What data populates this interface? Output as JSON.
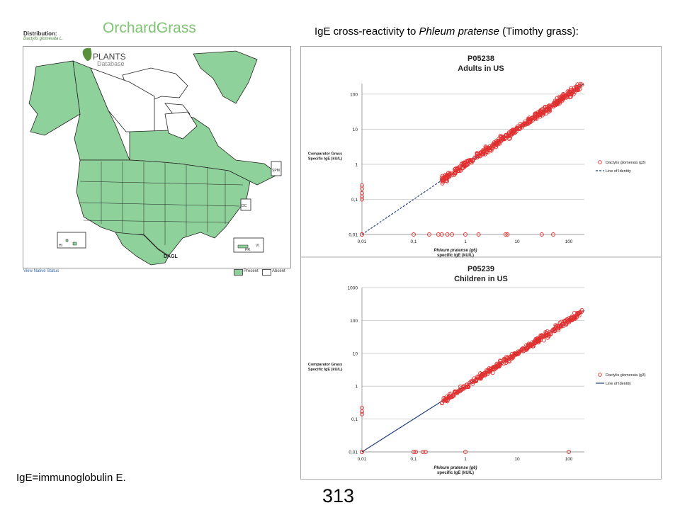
{
  "slide": {
    "title": "OrchardGrass",
    "chart_heading_prefix": "IgE cross-reactivity to ",
    "chart_heading_italic": "Phleum pratense",
    "chart_heading_suffix": " (Timothy grass):",
    "footnote": "IgE=immunoglobulin E.",
    "page_number": "313"
  },
  "map": {
    "distribution_label": "Distribution:",
    "species": "Dactylis glomerata L.",
    "logo_line1": "PLANTS",
    "logo_line2": "Database",
    "code_dagl": "DAGL",
    "code_spm": "SPM",
    "code_dc": "DC",
    "code_hi": "HI",
    "code_pr": "PR",
    "code_vi": "VI",
    "view_native_status": "View Native Status",
    "legend_present": "Present",
    "legend_absent": "Absent",
    "colors": {
      "present": "#8fd19a",
      "absent": "#ffffff",
      "border": "#222222"
    }
  },
  "chart_data": [
    {
      "type": "scatter",
      "title": "P05238",
      "subtitle": "Adults in US",
      "xlabel_italic": "Phleum pratense (g6)",
      "xlabel_unit": "specific IgE (kU/L)",
      "ylabel_line1": "Comparator Grass",
      "ylabel_line2": "Specific IgE (kU/L)",
      "x_scale": "log",
      "y_scale": "log",
      "xlim": [
        0.01,
        200
      ],
      "ylim": [
        0.01,
        200
      ],
      "x_ticks": [
        "0,01",
        "0,1",
        "1",
        "10",
        "100"
      ],
      "y_ticks": [
        "0,01",
        "0,1",
        "1",
        "10",
        "100"
      ],
      "grid": true,
      "legend_position": "right",
      "series": [
        {
          "name": "Dactylis glomerata (g3)",
          "marker": "open-circle",
          "color": "#e03030"
        },
        {
          "name": "Line of Identity",
          "line": "dashed",
          "color": "#1f3d7a"
        }
      ],
      "outliers_at_y_floor_x": [
        0.01,
        0.1,
        0.2,
        0.3,
        0.35,
        0.45,
        0.55,
        1.0,
        1.8,
        6.0,
        6.5,
        30,
        50
      ],
      "outliers_at_x_floor_y": [
        0.01,
        0.1,
        0.12,
        0.15,
        0.2,
        0.25
      ]
    },
    {
      "type": "scatter",
      "title": "P05239",
      "subtitle": "Children in US",
      "xlabel_italic": "Phleum pratense (g6)",
      "xlabel_unit": "specific IgE (kU/L)",
      "ylabel_line1": "Comparator Grass",
      "ylabel_line2": "Specific IgE (kU/L)",
      "x_scale": "log",
      "y_scale": "log",
      "xlim": [
        0.01,
        200
      ],
      "ylim": [
        0.01,
        1000
      ],
      "x_ticks": [
        "0,01",
        "0,1",
        "1",
        "10",
        "100"
      ],
      "y_ticks": [
        "0,01",
        "0,1",
        "1",
        "10",
        "100",
        "1000"
      ],
      "grid": true,
      "legend_position": "right",
      "series": [
        {
          "name": "Dactylis glomerata (g3)",
          "marker": "open-circle",
          "color": "#e03030"
        },
        {
          "name": "Line of Identity",
          "line": "solid",
          "color": "#1f3d7a"
        }
      ],
      "outliers_at_y_floor_x": [
        0.01,
        0.1,
        0.11,
        0.15,
        0.17,
        1.0,
        100
      ],
      "outliers_at_x_floor_y": [
        0.01,
        0.14,
        0.17,
        0.22
      ]
    }
  ]
}
